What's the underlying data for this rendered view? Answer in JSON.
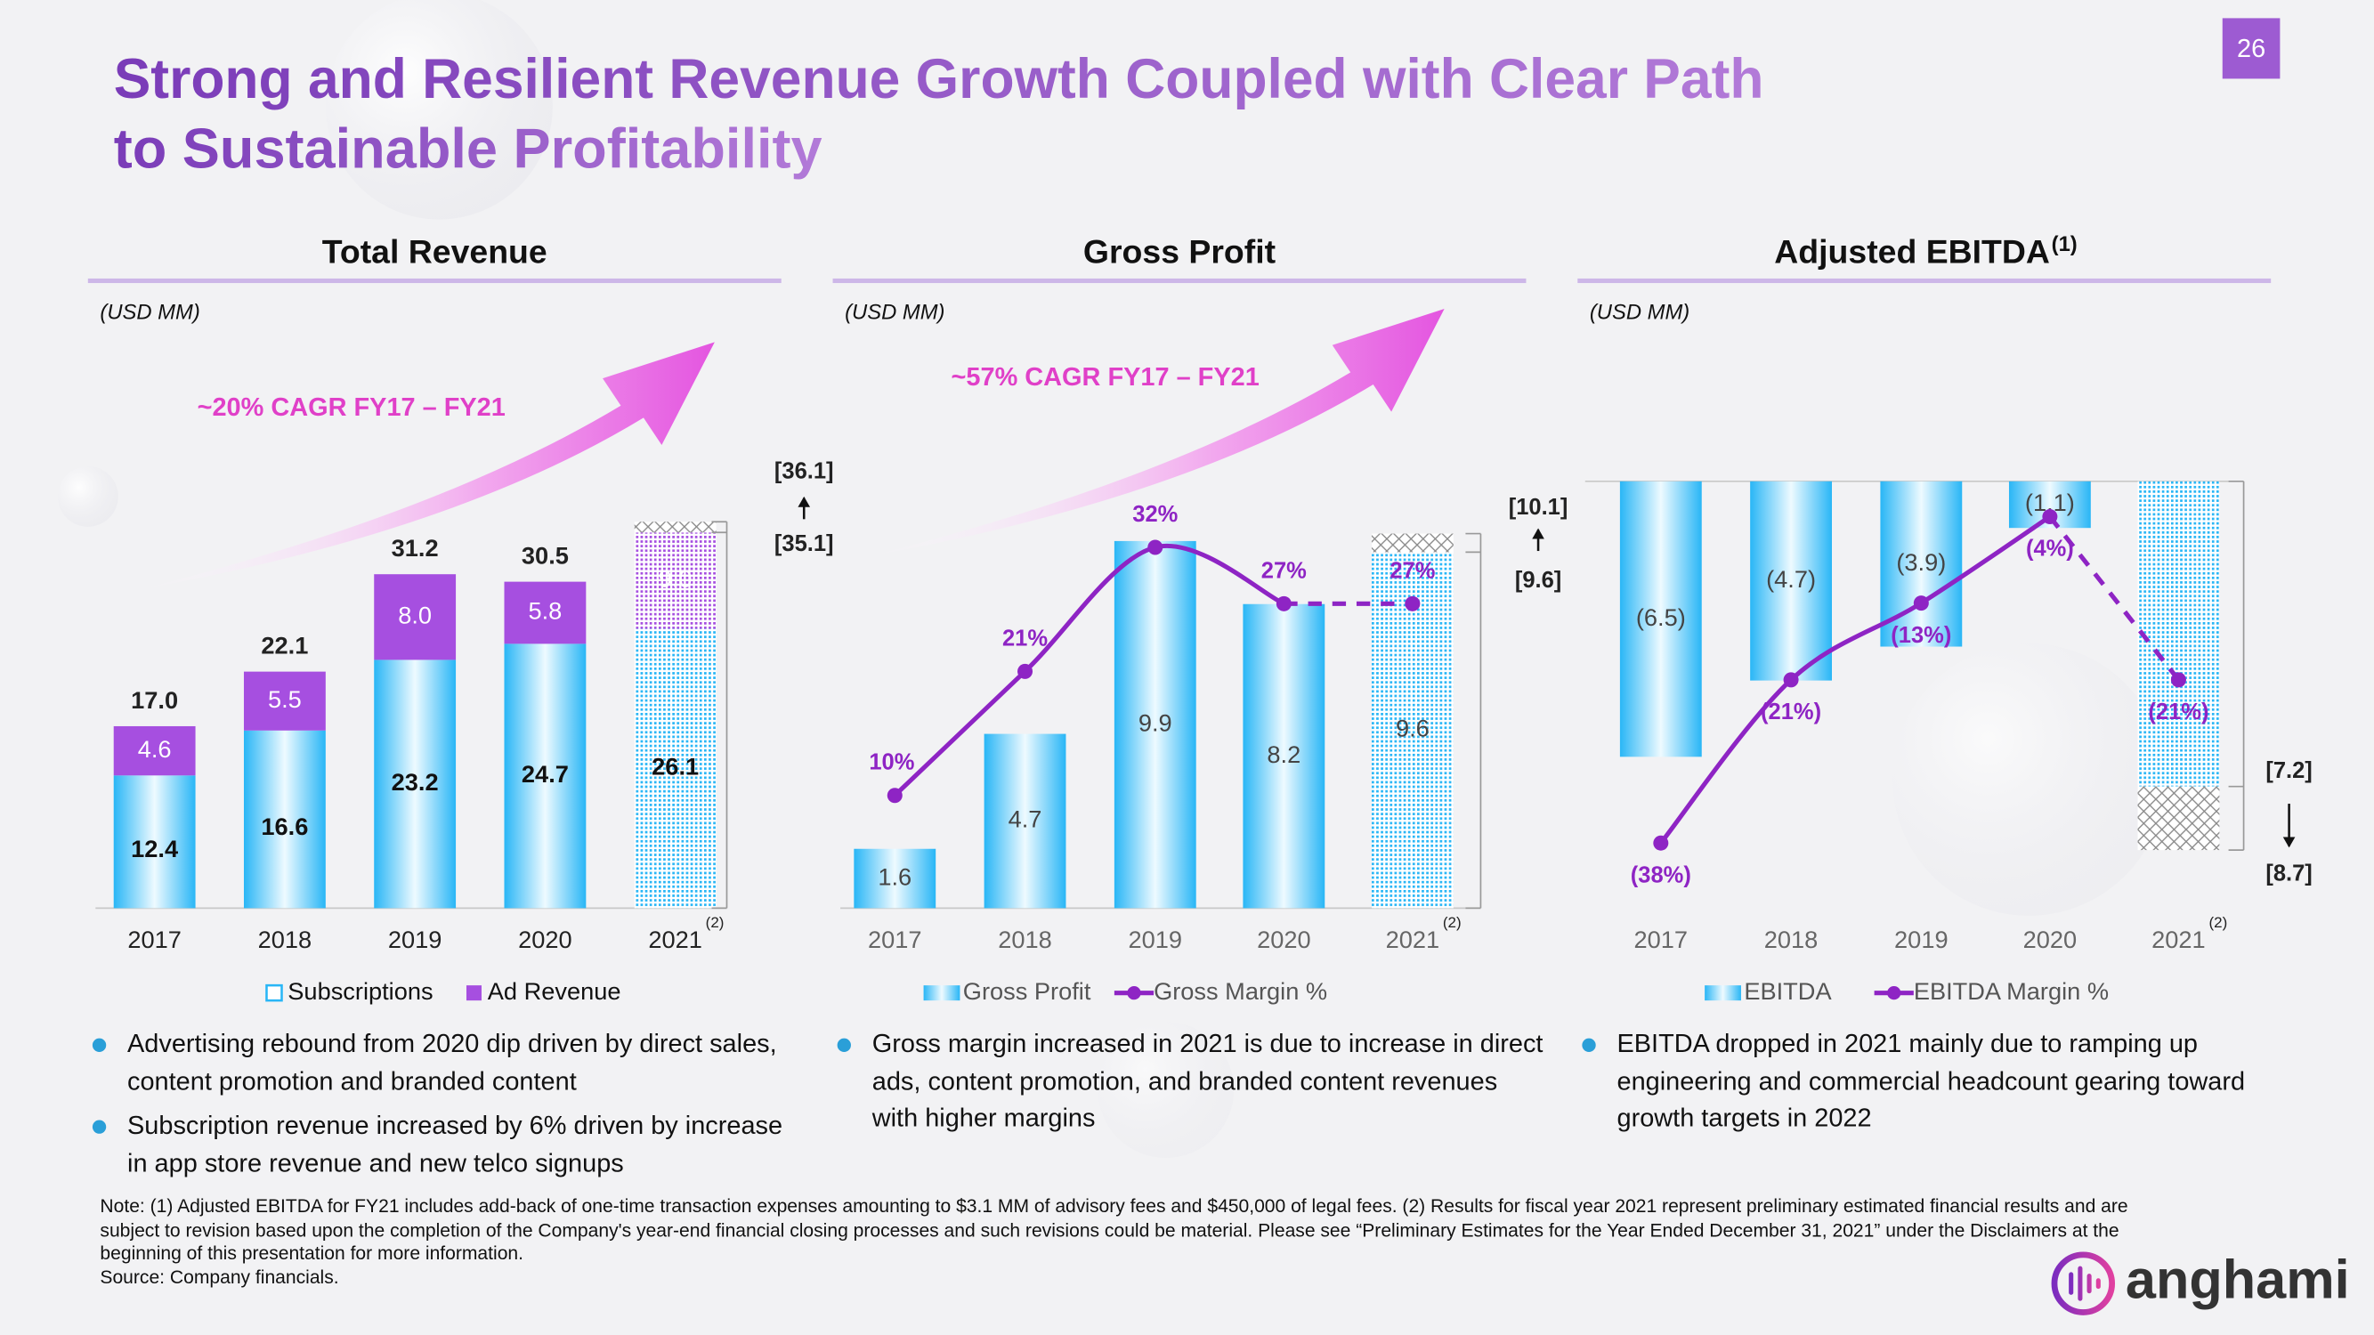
{
  "slide": {
    "title": [
      "Strong and Resilient Revenue Growth Coupled with Clear Path",
      "to Sustainable Profitability"
    ],
    "page_number": 26,
    "logo": "anghami",
    "notes": [
      "Note: (1) Adjusted EBITDA for FY21 includes add-back of one-time transaction expenses amounting to $3.1 MM of advisory fees and $450,000 of legal fees. (2) Results for fiscal year 2021 represent preliminary estimated financial results and are subject to revision based upon the completion of the Company's year-end financial closing processes and such revisions could be material.  Please see “Preliminary Estimates for the Year Ended December 31, 2021” under the Disclaimers at the beginning of this presentation for more information.",
      "Source: Company financials."
    ]
  },
  "chart_data": [
    {
      "type": "bar",
      "title": "Total Revenue",
      "unit": "(USD MM)",
      "annotation": "~20% CAGR FY17 – FY21",
      "footnote_marker": "(2)",
      "categories": [
        "2017",
        "2018",
        "2019",
        "2020",
        "2021"
      ],
      "hatched": [
        false,
        false,
        false,
        false,
        true
      ],
      "ylim": [
        0,
        42
      ],
      "series": [
        {
          "name": "Subscriptions",
          "type": "bar",
          "color": "#29b6f6",
          "values": [
            12.4,
            16.6,
            23.2,
            24.7,
            26.1
          ]
        },
        {
          "name": "Ad Revenue",
          "type": "bar",
          "color": "#a64fe0",
          "values": [
            4.6,
            5.5,
            8,
            5.8,
            9
          ],
          "value_labels": [
            "4.6",
            "5.5",
            "8.0",
            "5.8",
            "9.0"
          ]
        }
      ],
      "totals": [
        17,
        22.1,
        31.2,
        30.5,
        null
      ],
      "total_labels": [
        "17.0",
        "22.1",
        "31.2",
        "30.5",
        null
      ],
      "range": {
        "from": 35.1,
        "to": 36.1,
        "from_label": "[35.1]",
        "to_label": "[36.1]"
      },
      "bullets": [
        "Advertising rebound from 2020 dip driven by direct sales, content promotion and branded content",
        "Subscription revenue increased by 6% driven by increase in app store revenue and new telco signups"
      ]
    },
    {
      "type": "bar",
      "title": "Gross Profit",
      "unit": "(USD MM)",
      "annotation": "~57% CAGR FY17 – FY21",
      "footnote_marker": "(2)",
      "categories": [
        "2017",
        "2018",
        "2019",
        "2020",
        "2021"
      ],
      "hatched": [
        false,
        false,
        false,
        false,
        true
      ],
      "ylim": [
        0,
        12
      ],
      "y2lim": [
        0,
        40
      ],
      "series": [
        {
          "name": "Gross Profit",
          "type": "bar",
          "color": "#29b6f6",
          "values": [
            1.6,
            4.7,
            9.9,
            8.2,
            9.6
          ]
        },
        {
          "name": "Gross Margin %",
          "type": "line",
          "axis": "y2",
          "color": "#8e24c4",
          "values": [
            10,
            21,
            32,
            27,
            27
          ],
          "value_labels": [
            "10%",
            "21%",
            "32%",
            "27%",
            "27%"
          ]
        }
      ],
      "range": {
        "from": 9.6,
        "to": 10.1,
        "from_label": "[9.6]",
        "to_label": "[10.1]"
      },
      "bullets": [
        "Gross margin increased in 2021 is due to increase in direct ads, content promotion, and branded content revenues with higher margins"
      ]
    },
    {
      "type": "bar",
      "title": "Adjusted EBITDA",
      "title_marker": "(1)",
      "unit": "(USD MM)",
      "footnote_marker": "(2)",
      "categories": [
        "2017",
        "2018",
        "2019",
        "2020",
        "2021"
      ],
      "hatched": [
        false,
        false,
        false,
        false,
        true
      ],
      "ylim": [
        -10,
        0
      ],
      "y2lim": [
        -44,
        0
      ],
      "series": [
        {
          "name": "EBITDA",
          "type": "bar",
          "color": "#29b6f6",
          "values": [
            -6.5,
            -4.7,
            -3.9,
            -1.1,
            -7.2
          ],
          "value_labels": [
            "(6.5)",
            "(4.7)",
            "(3.9)",
            "(1.1)",
            null
          ]
        },
        {
          "name": "EBITDA Margin %",
          "type": "line",
          "axis": "y2",
          "color": "#8e24c4",
          "values": [
            -38,
            -21,
            -13,
            -4,
            -21
          ],
          "value_labels": [
            "(38%)",
            "(21%)",
            "(13%)",
            "(4%)",
            "(21%)"
          ]
        }
      ],
      "range": {
        "from": -7.2,
        "to": -8.7,
        "from_label": "[7.2]",
        "to_label": "[8.7]"
      },
      "bullets": [
        "EBITDA dropped in 2021 mainly due to ramping up engineering and commercial headcount gearing toward growth targets in 2022"
      ]
    }
  ]
}
